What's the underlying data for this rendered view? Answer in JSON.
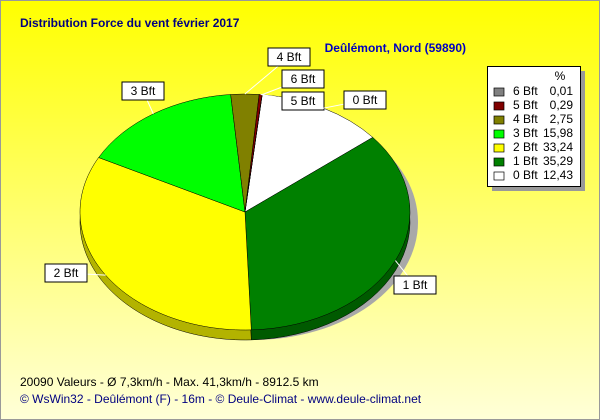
{
  "chart_data": {
    "type": "pie",
    "title": "Distribution Force du vent  février 2017",
    "subtitle": "Deûlémont, Nord (59890)",
    "legend_title": "%",
    "categories": [
      "6 Bft",
      "5 Bft",
      "4 Bft",
      "3 Bft",
      "2 Bft",
      "1 Bft",
      "0 Bft"
    ],
    "values": [
      0.01,
      0.29,
      2.75,
      15.98,
      33.24,
      35.29,
      12.43
    ],
    "value_labels": [
      "0,01",
      "0,29",
      "2,75",
      "15,98",
      "33,24",
      "35,29",
      "12,43"
    ],
    "colors": [
      "#808080",
      "#800000",
      "#808000",
      "#00ff00",
      "#ffff00",
      "#008000",
      "#ffffff"
    ],
    "notes": [
      "20090 Valeurs   -   Ø 7,3km/h  -  Max. 41,3km/h   -   8912.5 km",
      "© WsWin32  -  Deûlémont (F) - 16m  -  © Deule-Climat - www.deule-climat.net"
    ]
  }
}
